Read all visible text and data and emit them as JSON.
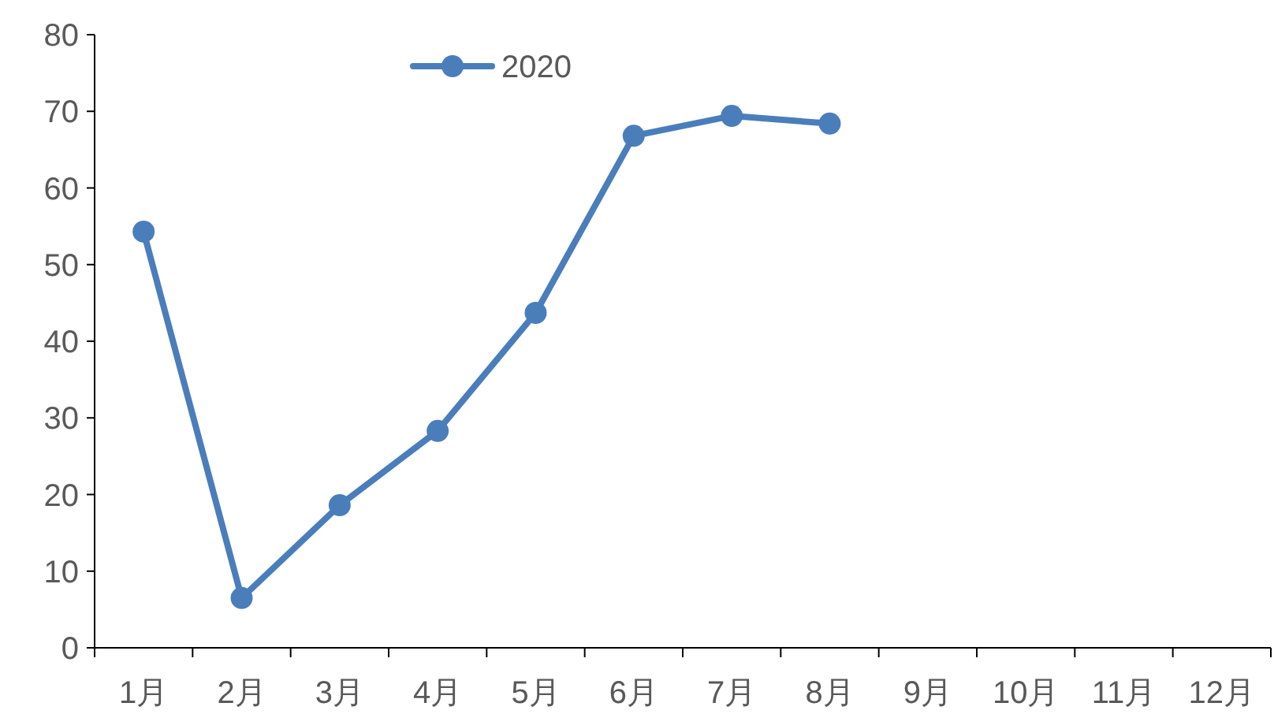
{
  "chart_data": {
    "type": "line",
    "categories": [
      "1月",
      "2月",
      "3月",
      "4月",
      "5月",
      "6月",
      "7月",
      "8月",
      "9月",
      "10月",
      "11月",
      "12月"
    ],
    "series": [
      {
        "name": "2020",
        "color": "#4a7ebb",
        "values": [
          54.3,
          6.5,
          18.6,
          28.3,
          43.7,
          66.8,
          69.4,
          68.4,
          null,
          null,
          null,
          null
        ]
      }
    ],
    "ylim": [
      0,
      80
    ],
    "yticks": [
      0,
      10,
      20,
      30,
      40,
      50,
      60,
      70,
      80
    ],
    "legend": "top",
    "marker": "circle",
    "grid": false
  }
}
